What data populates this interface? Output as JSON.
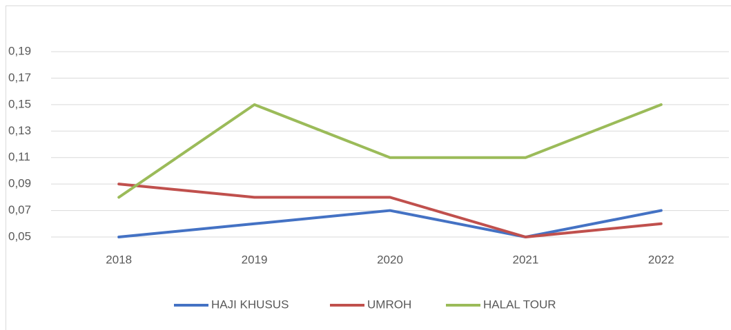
{
  "chart_data": {
    "type": "line",
    "categories": [
      "2018",
      "2019",
      "2020",
      "2021",
      "2022"
    ],
    "series": [
      {
        "name": "HAJI KHUSUS",
        "color": "#4472c4",
        "values": [
          0.05,
          0.06,
          0.07,
          0.05,
          0.07
        ]
      },
      {
        "name": "UMROH",
        "color": "#c0504d",
        "values": [
          0.09,
          0.08,
          0.08,
          0.05,
          0.06
        ]
      },
      {
        "name": "HALAL TOUR",
        "color": "#9bbb59",
        "values": [
          0.08,
          0.15,
          0.11,
          0.11,
          0.15
        ]
      }
    ],
    "ylim": [
      0.05,
      0.19
    ],
    "yticks": [
      {
        "value": 0.05,
        "label": "0,05"
      },
      {
        "value": 0.07,
        "label": "0,07"
      },
      {
        "value": 0.09,
        "label": "0,09"
      },
      {
        "value": 0.11,
        "label": "0,11"
      },
      {
        "value": 0.13,
        "label": "0,13"
      },
      {
        "value": 0.15,
        "label": "0,15"
      },
      {
        "value": 0.17,
        "label": "0,17"
      },
      {
        "value": 0.19,
        "label": "0,19"
      }
    ],
    "grid": true,
    "legend": "bottom"
  }
}
